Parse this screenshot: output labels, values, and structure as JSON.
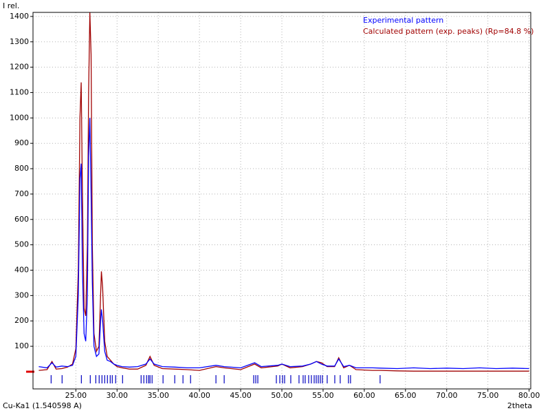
{
  "chart_data": {
    "type": "line",
    "y_label": "I rel.",
    "x_label": "2theta",
    "note": "Cu-Ka1 (1.540598 A)",
    "xlim": [
      19.8,
      80.2
    ],
    "ylim": [
      -68,
      1416
    ],
    "xticks": [
      {
        "value": 25,
        "label": "25.00"
      },
      {
        "value": 30,
        "label": "30.00"
      },
      {
        "value": 35,
        "label": "35.00"
      },
      {
        "value": 40,
        "label": "40.00"
      },
      {
        "value": 45,
        "label": "45.00"
      },
      {
        "value": 50,
        "label": "50.00"
      },
      {
        "value": 55,
        "label": "55.00"
      },
      {
        "value": 60,
        "label": "60.00"
      },
      {
        "value": 65,
        "label": "65.00"
      },
      {
        "value": 70,
        "label": "70.00"
      },
      {
        "value": 75,
        "label": "75.00"
      },
      {
        "value": 80,
        "label": "80.00"
      }
    ],
    "yticks": [
      100,
      200,
      300,
      400,
      500,
      600,
      700,
      800,
      900,
      1000,
      1100,
      1200,
      1300,
      1400
    ],
    "grid": true,
    "legend": "top-right",
    "x": [
      20.5,
      21.5,
      22.1,
      22.6,
      23.3,
      24.0,
      24.6,
      25.0,
      25.3,
      25.5,
      25.65,
      25.8,
      26.0,
      26.2,
      26.4,
      26.55,
      26.7,
      26.85,
      27.0,
      27.2,
      27.5,
      27.8,
      28.0,
      28.1,
      28.25,
      28.5,
      28.8,
      29.2,
      29.6,
      30.0,
      30.6,
      31.5,
      32.5,
      33.5,
      34.0,
      34.5,
      35.5,
      37.0,
      38.5,
      40.0,
      42.0,
      43.0,
      45.0,
      46.7,
      47.5,
      49.5,
      50.0,
      51.0,
      52.5,
      53.5,
      54.2,
      54.8,
      55.5,
      56.4,
      56.9,
      57.5,
      58.2,
      59.0,
      61.0,
      62.0,
      64.0,
      66.0,
      68.0,
      70.0,
      72.0,
      74.0,
      76.0,
      78.0,
      80.0
    ],
    "series": [
      {
        "name": "Experimental pattern",
        "color": "#0000ff",
        "values": [
          20,
          15,
          35,
          18,
          22,
          20,
          25,
          60,
          300,
          760,
          820,
          400,
          150,
          120,
          300,
          850,
          1000,
          700,
          350,
          100,
          60,
          70,
          200,
          245,
          200,
          80,
          45,
          40,
          30,
          25,
          20,
          18,
          20,
          30,
          50,
          30,
          20,
          18,
          15,
          15,
          25,
          20,
          15,
          35,
          20,
          25,
          30,
          20,
          22,
          30,
          40,
          30,
          22,
          22,
          50,
          20,
          25,
          15,
          15,
          14,
          12,
          15,
          12,
          14,
          12,
          15,
          12,
          14,
          12
        ]
      },
      {
        "name": "Calculated pattern (exp. peaks) (Rp=84.8 %)",
        "color": "#a00000",
        "values": [
          5,
          8,
          40,
          10,
          12,
          18,
          30,
          90,
          400,
          1000,
          1140,
          700,
          250,
          220,
          500,
          1100,
          1415,
          1250,
          500,
          150,
          80,
          100,
          300,
          395,
          330,
          120,
          60,
          45,
          30,
          20,
          15,
          10,
          10,
          25,
          60,
          25,
          12,
          10,
          8,
          5,
          20,
          15,
          8,
          30,
          15,
          22,
          30,
          15,
          20,
          30,
          40,
          35,
          20,
          20,
          55,
          15,
          25,
          8,
          5,
          5,
          3,
          2,
          2,
          2,
          2,
          2,
          2,
          2,
          2
        ]
      }
    ],
    "peak_positions": [
      22.0,
      23.33,
      25.67,
      26.75,
      27.42,
      27.83,
      28.17,
      28.5,
      28.83,
      29.17,
      29.42,
      29.83,
      30.67,
      32.92,
      33.25,
      33.58,
      33.83,
      34.0,
      34.25,
      35.58,
      37.0,
      38.0,
      38.92,
      42.0,
      43.0,
      46.58,
      46.83,
      47.08,
      49.33,
      49.75,
      50.08,
      50.33,
      51.08,
      52.08,
      52.58,
      52.83,
      53.25,
      53.58,
      53.92,
      54.17,
      54.42,
      54.67,
      54.92,
      55.5,
      56.42,
      57.08,
      58.08,
      58.33,
      61.92
    ]
  }
}
